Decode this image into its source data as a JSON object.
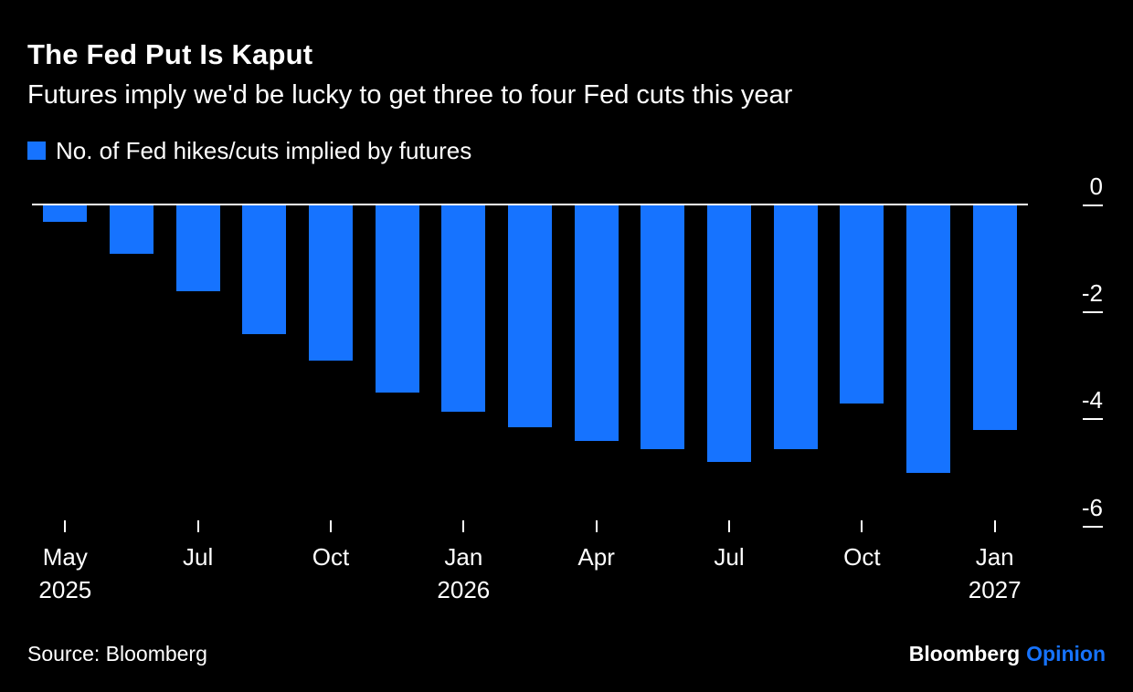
{
  "header": {
    "title": "The Fed Put Is Kaput",
    "subtitle": "Futures imply we'd be lucky to get three to four Fed cuts this year"
  },
  "legend": {
    "label": "No. of Fed hikes/cuts implied by futures",
    "swatch_color": "#1673ff"
  },
  "chart_data": {
    "type": "bar",
    "title": "The Fed Put Is Kaput",
    "subtitle": "Futures imply we'd be lucky to get three to four Fed cuts this year",
    "series_name": "No. of Fed hikes/cuts implied by futures",
    "n_bars": 15,
    "values": [
      -0.3,
      -0.9,
      -1.6,
      -2.4,
      -2.9,
      -3.5,
      -3.85,
      -4.15,
      -4.4,
      -4.55,
      -4.8,
      -4.55,
      -3.7,
      -5.0,
      -4.2
    ],
    "x_tick_labels": [
      {
        "index": 0,
        "line1": "May",
        "line2": "2025"
      },
      {
        "index": 2,
        "line1": "Jul",
        "line2": ""
      },
      {
        "index": 4,
        "line1": "Oct",
        "line2": ""
      },
      {
        "index": 6,
        "line1": "Jan",
        "line2": "2026"
      },
      {
        "index": 8,
        "line1": "Apr",
        "line2": ""
      },
      {
        "index": 10,
        "line1": "Jul",
        "line2": ""
      },
      {
        "index": 12,
        "line1": "Oct",
        "line2": ""
      },
      {
        "index": 14,
        "line1": "Jan",
        "line2": "2027"
      }
    ],
    "y_ticks": [
      0,
      -2,
      -4,
      -6
    ],
    "ylim": [
      0,
      -6.4
    ],
    "bar_color": "#1673ff",
    "axis_color": "#ffffff",
    "background_color": "#000000",
    "grid": false,
    "legend_position": "top-left",
    "zero_line": true
  },
  "footer": {
    "source": "Source: Bloomberg",
    "logo_primary": "Bloomberg",
    "logo_secondary": "Opinion",
    "logo_secondary_color": "#1673ff"
  }
}
